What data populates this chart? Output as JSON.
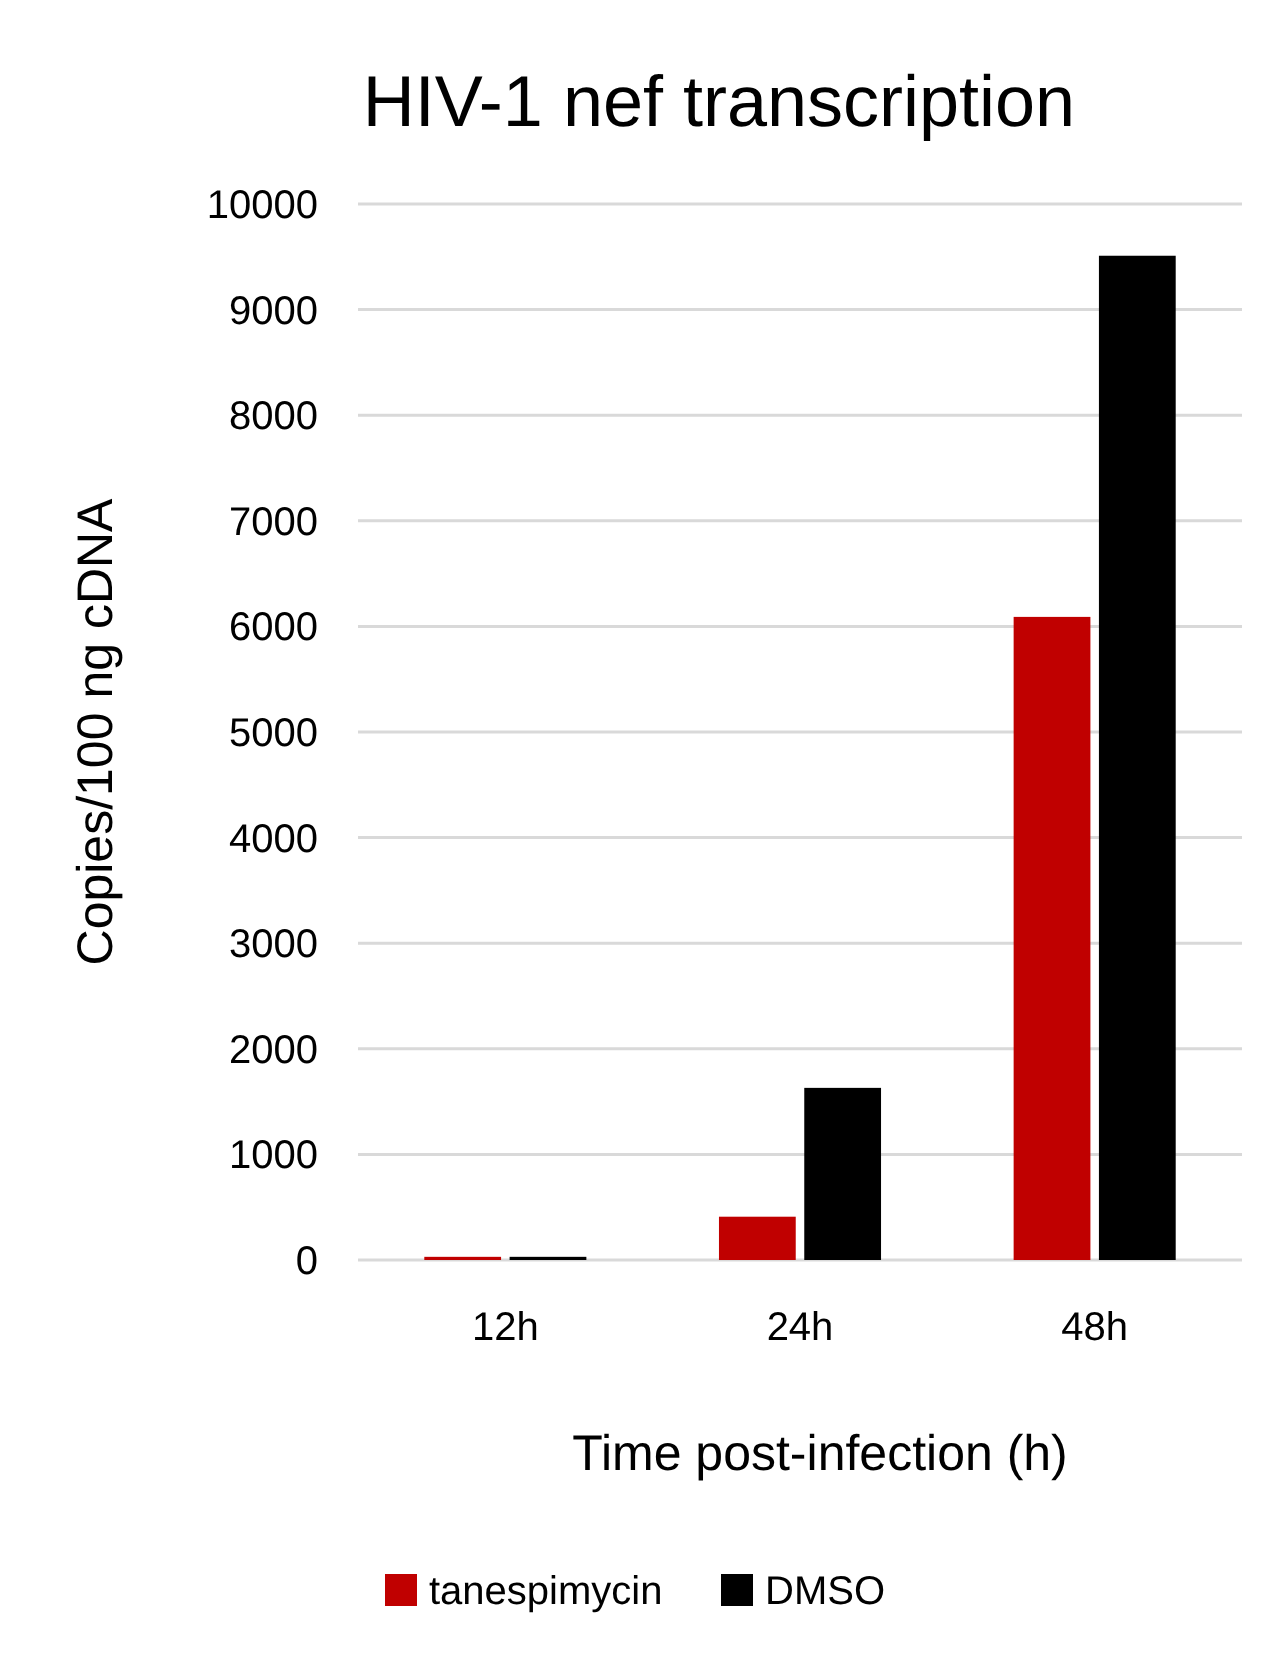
{
  "chart_data": {
    "type": "bar",
    "title": "HIV-1 nef transcription",
    "xlabel": "Time post-infection (h)",
    "ylabel": "Copies/100 ng cDNA",
    "categories": [
      "12h",
      "24h",
      "48h"
    ],
    "series": [
      {
        "name": "tanespimycin",
        "color": "#c00000",
        "values": [
          30,
          410,
          6090
        ]
      },
      {
        "name": "DMSO",
        "color": "#000000",
        "values": [
          30,
          1630,
          9510
        ]
      }
    ],
    "ylim": [
      0,
      10000
    ],
    "yticks": [
      0,
      1000,
      2000,
      3000,
      4000,
      5000,
      6000,
      7000,
      8000,
      9000,
      10000
    ],
    "grid": "y",
    "legend": "bottom"
  }
}
